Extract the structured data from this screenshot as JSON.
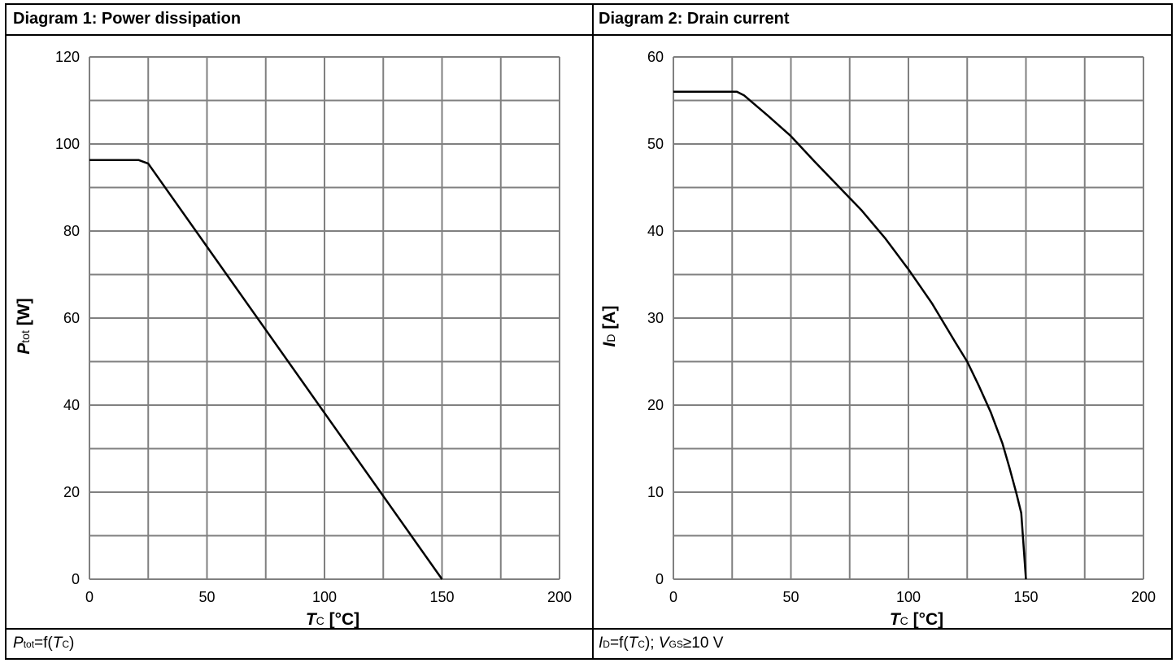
{
  "panels": [
    {
      "header": "Diagram 1: Power dissipation",
      "footer": {
        "p1": "P",
        "s1": "tot",
        "p2": "=f(",
        "p3": "T",
        "s3": "C",
        "p4": ")"
      },
      "axis_label_y": {
        "main": "P",
        "sub": "tot",
        "unit": " [W]"
      },
      "axis_label_x": {
        "main": "T",
        "sub": "C",
        "unit": " [°C]"
      }
    },
    {
      "header": "Diagram 2: Drain current",
      "footer": {
        "p1": "I",
        "s1": "D",
        "p2": "=f(",
        "p3": "T",
        "s3": "C",
        "p4": "); ",
        "p5": "V",
        "s5": "GS",
        "p6": "≥10 V"
      },
      "axis_label_y": {
        "main": "I",
        "sub": "D",
        "unit": " [A]"
      },
      "axis_label_x": {
        "main": "T",
        "sub": "C",
        "unit": " [°C]"
      }
    }
  ],
  "chart_data": [
    {
      "type": "line",
      "title": "Diagram 1: Power dissipation",
      "xlabel": "TC [°C]",
      "ylabel": "Ptot [W]",
      "xlim": [
        0,
        200
      ],
      "ylim": [
        0,
        120
      ],
      "xticks": [
        0,
        50,
        100,
        150,
        200
      ],
      "yticks": [
        0,
        20,
        40,
        60,
        80,
        100,
        120
      ],
      "grid": true,
      "series": [
        {
          "x": [
            0,
            21,
            25,
            150
          ],
          "y": [
            96.3,
            96.3,
            95.5,
            0
          ]
        }
      ]
    },
    {
      "type": "line",
      "title": "Diagram 2: Drain current",
      "xlabel": "TC [°C]",
      "ylabel": "ID [A]",
      "xlim": [
        0,
        200
      ],
      "ylim": [
        0,
        60
      ],
      "xticks": [
        0,
        50,
        100,
        150,
        200
      ],
      "yticks": [
        0,
        10,
        20,
        30,
        40,
        50,
        60
      ],
      "grid": true,
      "series": [
        {
          "x": [
            0,
            27,
            30,
            40,
            50,
            60,
            70,
            80,
            90,
            100,
            110,
            120,
            125,
            130,
            135,
            140,
            143,
            146,
            148,
            150
          ],
          "y": [
            56,
            56,
            55.6,
            53.3,
            50.9,
            48.0,
            45.2,
            42.4,
            39.2,
            35.6,
            31.7,
            27.2,
            25.0,
            22.2,
            19.2,
            15.6,
            12.8,
            9.8,
            7.6,
            0
          ]
        }
      ]
    }
  ],
  "colors": {
    "grid": "#808080",
    "line": "#000000",
    "border": "#000000"
  }
}
